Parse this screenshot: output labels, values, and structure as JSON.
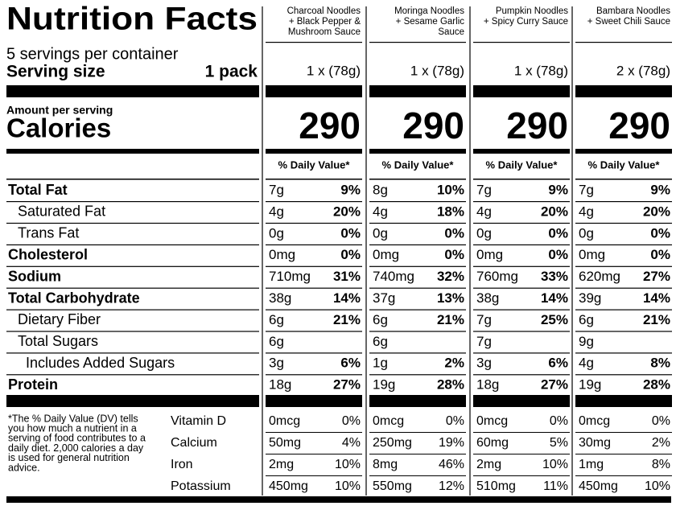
{
  "title": "Nutrition Facts",
  "servings": "5 servings per container",
  "serving_size_label": "Serving size",
  "serving_size": "1 pack",
  "amount_label": "Amount per serving",
  "calories_label": "Calories",
  "dv_header": "% Daily Value*",
  "nutrients": [
    {
      "label": "Total Fat",
      "bold": true,
      "indent": 0
    },
    {
      "label": "Saturated Fat",
      "bold": false,
      "indent": 1
    },
    {
      "label": "Trans Fat",
      "bold": false,
      "indent": 1
    },
    {
      "label": "Cholesterol",
      "bold": true,
      "indent": 0
    },
    {
      "label": "Sodium",
      "bold": true,
      "indent": 0
    },
    {
      "label": "Total Carbohydrate",
      "bold": true,
      "indent": 0
    },
    {
      "label": "Dietary Fiber",
      "bold": false,
      "indent": 1
    },
    {
      "label": "Total Sugars",
      "bold": false,
      "indent": 1
    },
    {
      "label": "Includes Added Sugars",
      "bold": false,
      "indent": 2
    },
    {
      "label": "Protein",
      "bold": true,
      "indent": 0
    }
  ],
  "vitamins": [
    "Vitamin D",
    "Calcium",
    "Iron",
    "Potassium"
  ],
  "footnote": [
    "*The % Daily Value (DV) tells",
    "you how much a nutrient in a",
    "serving of food contributes to a",
    "daily diet. 2,000 calories a day",
    "is used for general nutrition",
    "advice."
  ],
  "products": [
    {
      "name": [
        "Charcoal Noodles",
        "+ Black Pepper &",
        "Mushroom Sauce"
      ],
      "serving": "1 x (78g)",
      "calories": 290,
      "nutrients": [
        [
          "7g",
          "9%"
        ],
        [
          "4g",
          "20%"
        ],
        [
          "0g",
          "0%"
        ],
        [
          "0mg",
          "0%"
        ],
        [
          "710mg",
          "31%"
        ],
        [
          "38g",
          "14%"
        ],
        [
          "6g",
          "21%"
        ],
        [
          "6g"
        ],
        [
          "3g",
          "6%"
        ],
        [
          "18g",
          "27%"
        ]
      ],
      "vitamins": [
        [
          "0mcg",
          "0%"
        ],
        [
          "50mg",
          "4%"
        ],
        [
          "2mg",
          "10%"
        ],
        [
          "450mg",
          "10%"
        ]
      ]
    },
    {
      "name": [
        "Moringa Noodles",
        "+ Sesame Garlic",
        "Sauce"
      ],
      "serving": "1 x (78g)",
      "calories": 290,
      "nutrients": [
        [
          "8g",
          "10%"
        ],
        [
          "4g",
          "18%"
        ],
        [
          "0g",
          "0%"
        ],
        [
          "0mg",
          "0%"
        ],
        [
          "740mg",
          "32%"
        ],
        [
          "37g",
          "13%"
        ],
        [
          "6g",
          "21%"
        ],
        [
          "6g"
        ],
        [
          "1g",
          "2%"
        ],
        [
          "19g",
          "28%"
        ]
      ],
      "vitamins": [
        [
          "0mcg",
          "0%"
        ],
        [
          "250mg",
          "19%"
        ],
        [
          "8mg",
          "46%"
        ],
        [
          "550mg",
          "12%"
        ]
      ]
    },
    {
      "name": [
        "Pumpkin Noodles",
        "+ Spicy Curry Sauce"
      ],
      "serving": "1 x (78g)",
      "calories": 290,
      "nutrients": [
        [
          "7g",
          "9%"
        ],
        [
          "4g",
          "20%"
        ],
        [
          "0g",
          "0%"
        ],
        [
          "0mg",
          "0%"
        ],
        [
          "760mg",
          "33%"
        ],
        [
          "38g",
          "14%"
        ],
        [
          "7g",
          "25%"
        ],
        [
          "7g"
        ],
        [
          "3g",
          "6%"
        ],
        [
          "18g",
          "27%"
        ]
      ],
      "vitamins": [
        [
          "0mcg",
          "0%"
        ],
        [
          "60mg",
          "5%"
        ],
        [
          "2mg",
          "10%"
        ],
        [
          "510mg",
          "11%"
        ]
      ]
    },
    {
      "name": [
        "Bambara Noodles",
        "+ Sweet Chili Sauce"
      ],
      "serving": "2 x (78g)",
      "calories": 290,
      "nutrients": [
        [
          "7g",
          "9%"
        ],
        [
          "4g",
          "20%"
        ],
        [
          "0g",
          "0%"
        ],
        [
          "0mg",
          "0%"
        ],
        [
          "620mg",
          "27%"
        ],
        [
          "39g",
          "14%"
        ],
        [
          "6g",
          "21%"
        ],
        [
          "9g"
        ],
        [
          "4g",
          "8%"
        ],
        [
          "19g",
          "28%"
        ]
      ],
      "vitamins": [
        [
          "0mcg",
          "0%"
        ],
        [
          "30mg",
          "2%"
        ],
        [
          "1mg",
          "8%"
        ],
        [
          "450mg",
          "10%"
        ]
      ]
    }
  ]
}
